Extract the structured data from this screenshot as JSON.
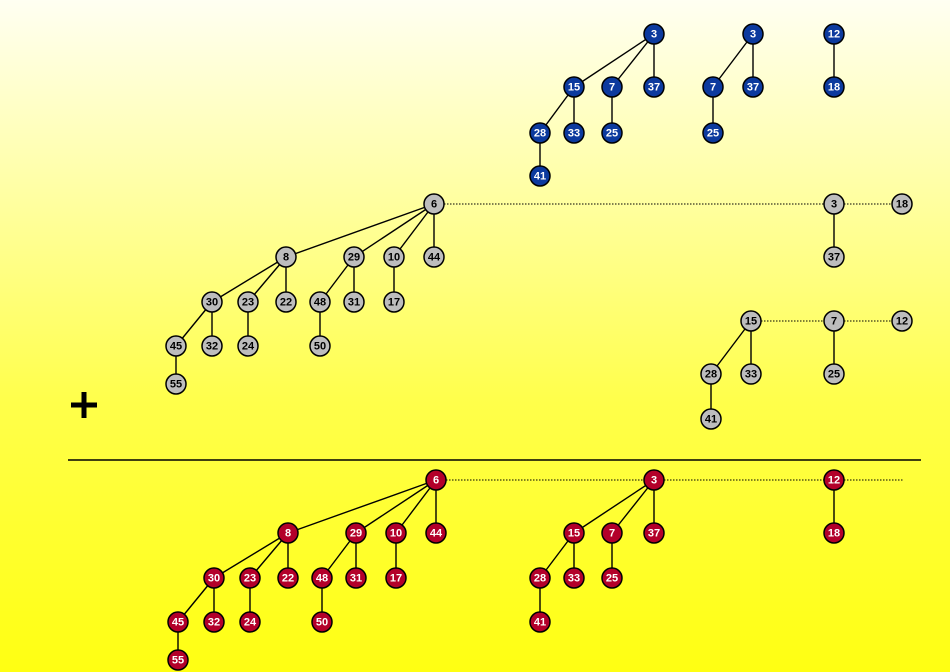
{
  "operator_symbol": "+",
  "heaps": {
    "blue": [
      {
        "key": "3",
        "children": [
          {
            "key": "15",
            "children": [
              {
                "key": "28",
                "children": [
                  {
                    "key": "41",
                    "children": []
                  }
                ]
              },
              {
                "key": "33",
                "children": []
              }
            ]
          },
          {
            "key": "7",
            "children": [
              {
                "key": "25",
                "children": []
              }
            ]
          },
          {
            "key": "37",
            "children": []
          }
        ]
      },
      {
        "key": "3",
        "children": [
          {
            "key": "7",
            "children": [
              {
                "key": "25",
                "children": []
              }
            ]
          },
          {
            "key": "37",
            "children": []
          }
        ]
      },
      {
        "key": "12",
        "children": [
          {
            "key": "18",
            "children": []
          }
        ]
      }
    ],
    "gray": [
      {
        "key": "6",
        "children": [
          {
            "key": "8",
            "children": [
              {
                "key": "30",
                "children": [
                  {
                    "key": "45",
                    "children": [
                      {
                        "key": "55",
                        "children": []
                      }
                    ]
                  },
                  {
                    "key": "32",
                    "children": []
                  }
                ]
              },
              {
                "key": "23",
                "children": [
                  {
                    "key": "24",
                    "children": []
                  }
                ]
              },
              {
                "key": "22",
                "children": []
              }
            ]
          },
          {
            "key": "29",
            "children": [
              {
                "key": "48",
                "children": [
                  {
                    "key": "50",
                    "children": []
                  }
                ]
              },
              {
                "key": "31",
                "children": []
              }
            ]
          },
          {
            "key": "10",
            "children": [
              {
                "key": "17",
                "children": []
              }
            ]
          },
          {
            "key": "44",
            "children": []
          }
        ]
      },
      {
        "key": "3",
        "children": [
          {
            "key": "37",
            "children": []
          }
        ]
      },
      {
        "key": "18",
        "children": []
      },
      {
        "key": "15",
        "children": [
          {
            "key": "28",
            "children": [
              {
                "key": "41",
                "children": []
              }
            ]
          },
          {
            "key": "33",
            "children": []
          }
        ]
      },
      {
        "key": "7",
        "children": [
          {
            "key": "25",
            "children": []
          }
        ]
      },
      {
        "key": "12",
        "children": []
      }
    ],
    "red": [
      {
        "key": "6",
        "children": [
          {
            "key": "8",
            "children": [
              {
                "key": "30",
                "children": [
                  {
                    "key": "45",
                    "children": [
                      {
                        "key": "55",
                        "children": []
                      }
                    ]
                  },
                  {
                    "key": "32",
                    "children": []
                  }
                ]
              },
              {
                "key": "23",
                "children": [
                  {
                    "key": "24",
                    "children": []
                  }
                ]
              },
              {
                "key": "22",
                "children": []
              }
            ]
          },
          {
            "key": "29",
            "children": [
              {
                "key": "48",
                "children": [
                  {
                    "key": "50",
                    "children": []
                  }
                ]
              },
              {
                "key": "31",
                "children": []
              }
            ]
          },
          {
            "key": "10",
            "children": [
              {
                "key": "17",
                "children": []
              }
            ]
          },
          {
            "key": "44",
            "children": []
          }
        ]
      },
      {
        "key": "3",
        "children": [
          {
            "key": "15",
            "children": [
              {
                "key": "28",
                "children": [
                  {
                    "key": "41",
                    "children": []
                  }
                ]
              },
              {
                "key": "33",
                "children": []
              }
            ]
          },
          {
            "key": "7",
            "children": [
              {
                "key": "25",
                "children": []
              }
            ]
          },
          {
            "key": "37",
            "children": []
          }
        ]
      },
      {
        "key": "12",
        "children": [
          {
            "key": "18",
            "children": []
          }
        ]
      }
    ]
  },
  "colors": {
    "blue_fill": "#0c3a9e",
    "gray_fill": "#bdbdbd",
    "red_fill": "#b3002a",
    "node_stroke": "#000000",
    "background_top": "#fffff2",
    "background_bottom": "#ffff12"
  }
}
